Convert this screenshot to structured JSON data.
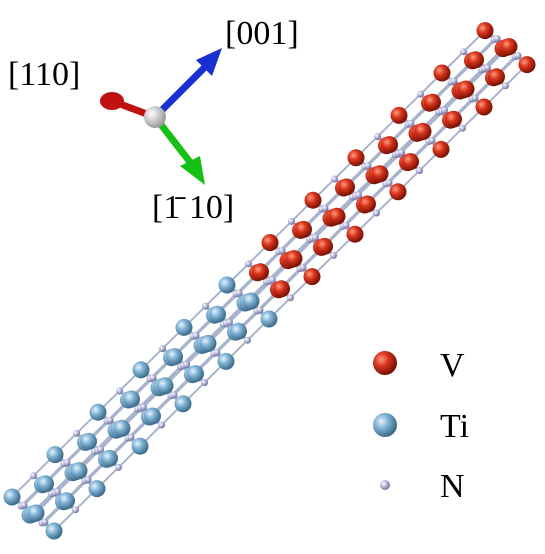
{
  "axis_labels": [
    "[001]",
    "[110]",
    "[1̄ 10]"
  ],
  "legend": {
    "items": [
      {
        "label": "V"
      },
      {
        "label": "Ti"
      },
      {
        "label": "N"
      }
    ]
  }
}
